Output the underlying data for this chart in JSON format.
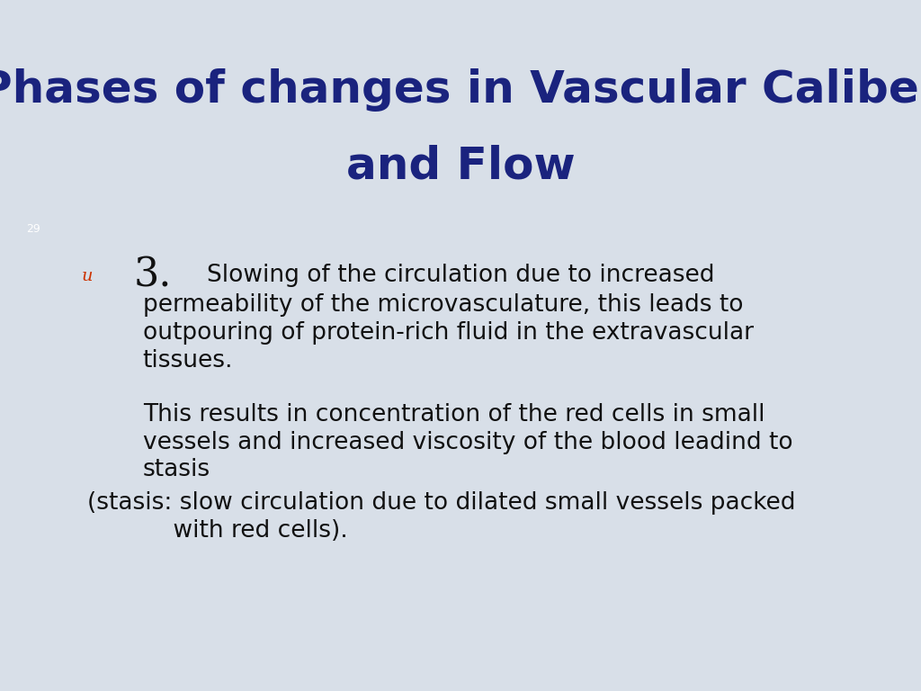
{
  "title_line1": "Phases of changes in Vascular Caliber",
  "title_line2": "and Flow",
  "title_color": "#1a237e",
  "title_fontsize": 36,
  "bg_color": "#d8dfe8",
  "bar_color_olive": "#6b6b2e",
  "bar_color_purple": "#5b4a7a",
  "page_number": "29",
  "page_num_color": "#ffffff",
  "page_num_fontsize": 9,
  "bullet_u_color": "#cc3300",
  "bullet_u_fontsize": 14,
  "number_3_fontsize": 32,
  "body_fontsize": 19,
  "body_color": "#111111",
  "line2": "permeability of the microvasculature, this leads to",
  "line3": "outpouring of protein-rich fluid in the extravascular",
  "line4": "tissues.",
  "line5": "This results in concentration of the red cells in small",
  "line6": "vessels and increased viscosity of the blood leadind to",
  "line7": "stasis",
  "line8": "(stasis: slow circulation due to dilated small vessels packed",
  "line9": "    with red cells)."
}
